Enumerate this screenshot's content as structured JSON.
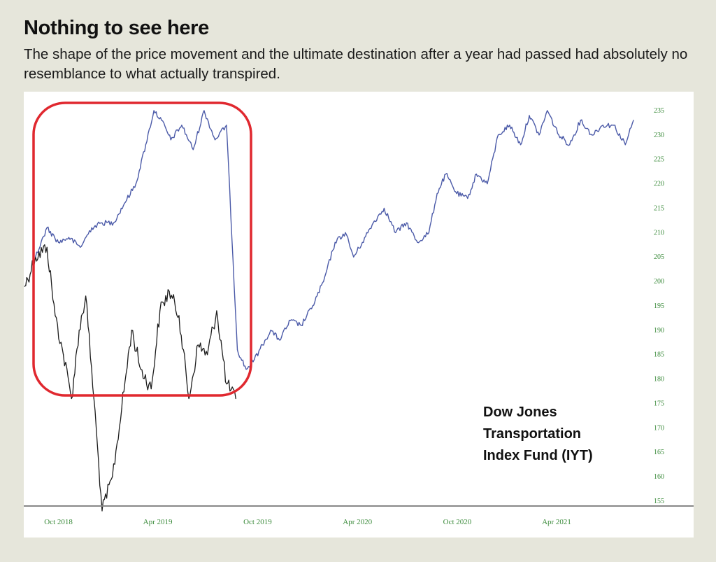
{
  "header": {
    "title": "Nothing to see here",
    "subtitle": "The shape of the price movement and the ultimate destination after a year had passed had absolutely no resemblance to what actually transpired."
  },
  "annotation": {
    "line1": "Dow Jones",
    "line2": "Transportation",
    "line3": "Index Fund (IYT)"
  },
  "colors": {
    "background": "#e6e6db",
    "panel": "#ffffff",
    "blue_series": "#4b5aa8",
    "black_series": "#1c1c1c",
    "highlight_box": "#e0282f",
    "tick_text": "#3a8a3a"
  },
  "chart_data": {
    "type": "line",
    "title": "",
    "xlabel": "",
    "ylabel": "",
    "x_ticks": [
      "Oct 2018",
      "Apr 2019",
      "Oct 2019",
      "Apr 2020",
      "Oct 2020",
      "Apr 2021"
    ],
    "y_ticks": [
      155,
      160,
      165,
      170,
      175,
      180,
      185,
      190,
      195,
      200,
      205,
      210,
      215,
      220,
      225,
      230,
      235
    ],
    "ylim": [
      155,
      236
    ],
    "y_axis_position": "right",
    "grid": false,
    "highlight": "rounded red box around the earlier period, Aug 2018 – Aug 2019",
    "series": [
      {
        "style": "black",
        "x": [
          "2018-07-31",
          "2018-08-20",
          "2018-09-10",
          "2018-09-25",
          "2018-10-10",
          "2018-10-25",
          "2018-11-08",
          "2018-11-20",
          "2018-12-05",
          "2018-12-20",
          "2019-01-08",
          "2019-01-25",
          "2019-02-12",
          "2019-03-01",
          "2019-03-20",
          "2019-04-05",
          "2019-04-22",
          "2019-05-10",
          "2019-05-28",
          "2019-06-14",
          "2019-07-01",
          "2019-07-18",
          "2019-08-05",
          "2019-08-22"
        ],
        "values": [
          199,
          205,
          207,
          193,
          185,
          176,
          190,
          197,
          176,
          153,
          160,
          174,
          190,
          182,
          178,
          194,
          198,
          193,
          176,
          187,
          185,
          194,
          179,
          176
        ]
      },
      {
        "style": "blue",
        "x": [
          "2018-08-20",
          "2018-09-10",
          "2018-10-01",
          "2018-10-20",
          "2018-11-10",
          "2018-12-01",
          "2018-12-20",
          "2019-01-10",
          "2019-01-30",
          "2019-02-20",
          "2019-03-10",
          "2019-03-25",
          "2019-04-08",
          "2019-04-25",
          "2019-05-15",
          "2019-06-05",
          "2019-06-25",
          "2019-07-15",
          "2019-08-05",
          "2019-08-25",
          "2019-09-10",
          "2019-09-25",
          "2019-10-10",
          "2019-10-25",
          "2019-11-10",
          "2019-11-30",
          "2019-12-20",
          "2020-01-10",
          "2020-01-30",
          "2020-02-20",
          "2020-03-10",
          "2020-03-25",
          "2020-04-10",
          "2020-04-30",
          "2020-05-20",
          "2020-06-10",
          "2020-06-30",
          "2020-07-20",
          "2020-08-10",
          "2020-08-25",
          "2020-09-10",
          "2020-09-30",
          "2020-10-20",
          "2020-11-05",
          "2020-11-25",
          "2020-12-15",
          "2021-01-05",
          "2021-01-25",
          "2021-02-10",
          "2021-02-28",
          "2021-03-15",
          "2021-04-05",
          "2021-04-25",
          "2021-05-15",
          "2021-06-05",
          "2021-06-25",
          "2021-07-15",
          "2021-08-05",
          "2021-08-20"
        ],
        "values": [
          205,
          211,
          208,
          209,
          207,
          211,
          212,
          212,
          216,
          220,
          228,
          235,
          233,
          229,
          232,
          227,
          235,
          229,
          232,
          186,
          182,
          184,
          187,
          190,
          188,
          192,
          191,
          195,
          200,
          208,
          210,
          205,
          208,
          212,
          215,
          210,
          212,
          208,
          210,
          218,
          222,
          218,
          217,
          222,
          220,
          230,
          232,
          228,
          234,
          230,
          235,
          230,
          228,
          233,
          230,
          232,
          232,
          228,
          233
        ]
      }
    ]
  }
}
